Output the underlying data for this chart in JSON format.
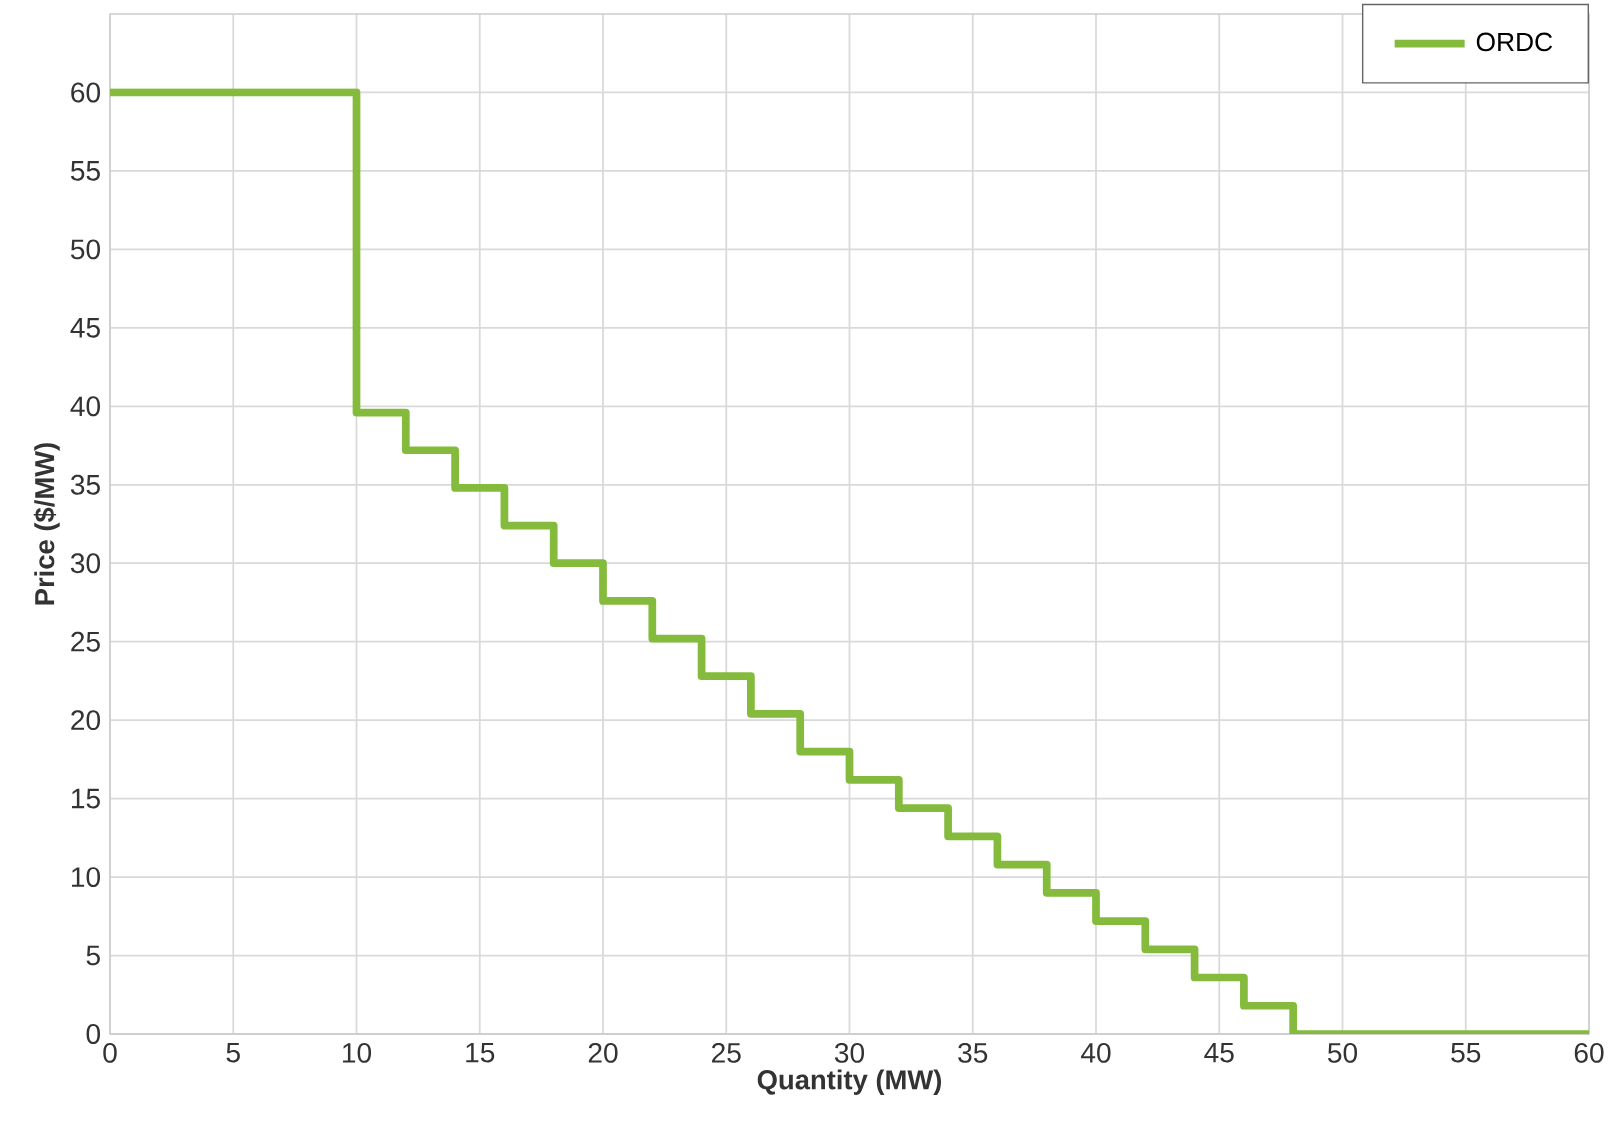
{
  "chart_data": {
    "type": "step",
    "xlabel": "Quantity (MW)",
    "ylabel": "Price ($/MW)",
    "xlim": [
      0,
      60
    ],
    "ylim": [
      0,
      65
    ],
    "xticks": [
      0,
      5,
      10,
      15,
      20,
      25,
      30,
      35,
      40,
      45,
      50,
      55,
      60
    ],
    "yticks": [
      0,
      5,
      10,
      15,
      20,
      25,
      30,
      35,
      40,
      45,
      50,
      55,
      60
    ],
    "grid": true,
    "legend": "top right",
    "series": [
      {
        "name": "ORDC",
        "color": "#84bb3c",
        "x": [
          0,
          10,
          12,
          14,
          16,
          18,
          20,
          22,
          24,
          26,
          28,
          30,
          32,
          34,
          36,
          38,
          40,
          42,
          44,
          46,
          48,
          60
        ],
        "values": [
          60,
          39.6,
          37.2,
          34.8,
          32.4,
          30,
          27.6,
          25.2,
          22.8,
          20.4,
          18,
          16.2,
          14.4,
          12.6,
          10.8,
          9,
          7.2,
          5.4,
          3.6,
          1.8,
          0,
          0
        ]
      }
    ]
  }
}
